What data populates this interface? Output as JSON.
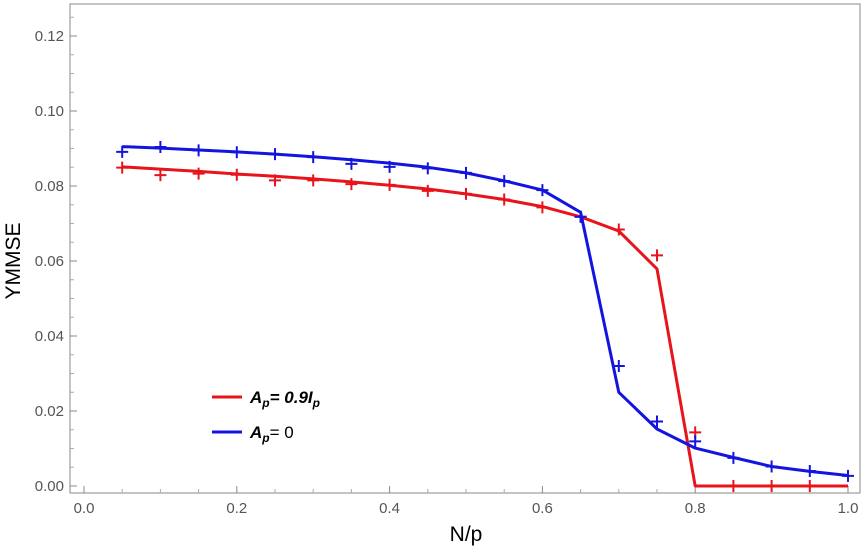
{
  "chart_data": {
    "type": "line",
    "xlabel": "N/p",
    "ylabel": "YMMSE",
    "xlim": [
      0,
      1.0
    ],
    "ylim": [
      0,
      0.13
    ],
    "x_ticks": [
      "0.0",
      "0.2",
      "0.4",
      "0.6",
      "0.8",
      "1.0"
    ],
    "y_ticks": [
      "0.00",
      "0.02",
      "0.04",
      "0.06",
      "0.08",
      "0.10",
      "0.12"
    ],
    "grid": false,
    "legend_position": "bottom-left",
    "series": [
      {
        "name": "A_p = 0.9 I_p",
        "color": "#e8141c",
        "x": [
          0.05,
          0.1,
          0.15,
          0.2,
          0.25,
          0.3,
          0.35,
          0.4,
          0.45,
          0.5,
          0.55,
          0.6,
          0.65,
          0.7,
          0.75,
          0.8,
          0.85,
          0.9,
          0.95,
          1.0
        ],
        "line": [
          0.0851,
          0.0845,
          0.0839,
          0.0832,
          0.0826,
          0.0819,
          0.0811,
          0.0802,
          0.0792,
          0.0779,
          0.0764,
          0.0745,
          0.0718,
          0.068,
          0.0579,
          0.0,
          0.0,
          0.0,
          0.0,
          0.0
        ],
        "markers": [
          0.0849,
          0.0829,
          0.0833,
          0.083,
          0.0815,
          0.0815,
          0.0805,
          0.0803,
          0.0787,
          0.0779,
          0.0764,
          0.0743,
          0.0718,
          0.0684,
          0.0615,
          0.0143,
          0.0,
          0.0,
          0.0,
          null
        ]
      },
      {
        "name": "A_p = 0",
        "color": "#1414e0",
        "x": [
          0.05,
          0.1,
          0.15,
          0.2,
          0.25,
          0.3,
          0.35,
          0.4,
          0.45,
          0.5,
          0.55,
          0.6,
          0.65,
          0.7,
          0.75,
          0.8,
          0.85,
          0.9,
          0.95,
          1.0
        ],
        "line": [
          0.0905,
          0.0901,
          0.0896,
          0.0891,
          0.0885,
          0.0878,
          0.087,
          0.0861,
          0.085,
          0.0835,
          0.0814,
          0.0789,
          0.073,
          0.025,
          0.0152,
          0.0101,
          0.0076,
          0.0052,
          0.0039,
          0.0028
        ],
        "markers": [
          0.0891,
          0.0904,
          0.0895,
          0.089,
          0.0885,
          0.0877,
          0.0859,
          0.0851,
          0.0847,
          0.0835,
          0.0813,
          0.0789,
          0.0718,
          0.032,
          0.0172,
          0.0119,
          0.0075,
          0.0052,
          0.004,
          0.0027
        ]
      }
    ]
  },
  "legend": {
    "red_sym": "A",
    "red_sub": "p",
    "red_eq": "= 0.9",
    "red_i": "I",
    "red_isub": "p",
    "blue_sym": "A",
    "blue_sub": "p",
    "blue_eq": "= 0"
  }
}
